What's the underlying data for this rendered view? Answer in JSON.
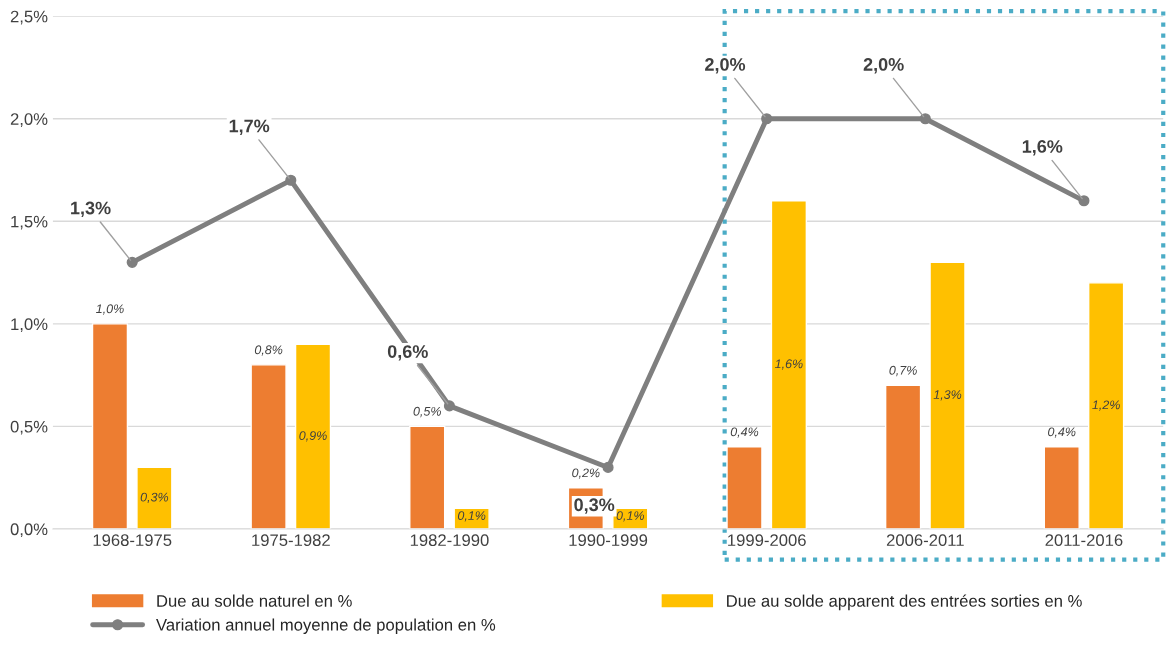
{
  "chart_data": {
    "type": "bar",
    "categories": [
      "1968-1975",
      "1975-1982",
      "1982-1990",
      "1990-1999",
      "1999-2006",
      "2006-2011",
      "2011-2016"
    ],
    "series": [
      {
        "name": "Due au solde naturel en %",
        "color": "#ed7d31",
        "values": [
          1.0,
          0.8,
          0.5,
          0.2,
          0.4,
          0.7,
          0.4
        ],
        "value_labels": [
          "1,0%",
          "0,8%",
          "0,5%",
          "0,2%",
          "0,4%",
          "0,7%",
          "0,4%"
        ]
      },
      {
        "name": "Due au solde apparent des entrées sorties en %",
        "color": "#ffc000",
        "values": [
          0.3,
          0.9,
          0.1,
          0.1,
          1.6,
          1.3,
          1.2
        ],
        "value_labels": [
          "0,3%",
          "0,9%",
          "0,1%",
          "0,1%",
          "1,6%",
          "1,3%",
          "1,2%"
        ]
      },
      {
        "name": "Variation annuel moyenne de population en %",
        "type": "line",
        "color": "#7f7f7f",
        "marker": "circle",
        "line_style": "solid",
        "values": [
          1.3,
          1.7,
          0.6,
          0.3,
          2.0,
          2.0,
          1.6
        ],
        "value_labels": [
          "1,3%",
          "1,7%",
          "0,6%",
          "0,3%",
          "2,0%",
          "2,0%",
          "1,6%"
        ]
      }
    ],
    "ylim": [
      0,
      2.5
    ],
    "yticks": [
      {
        "value": 0,
        "label": "0,0%"
      },
      {
        "value": 0.5,
        "label": "0,5%"
      },
      {
        "value": 1.0,
        "label": "1,0%"
      },
      {
        "value": 1.5,
        "label": "1,5%"
      },
      {
        "value": 2.0,
        "label": "2,0%"
      },
      {
        "value": 2.5,
        "label": "2,5%"
      }
    ],
    "grid": "y",
    "legend": "bottom"
  }
}
